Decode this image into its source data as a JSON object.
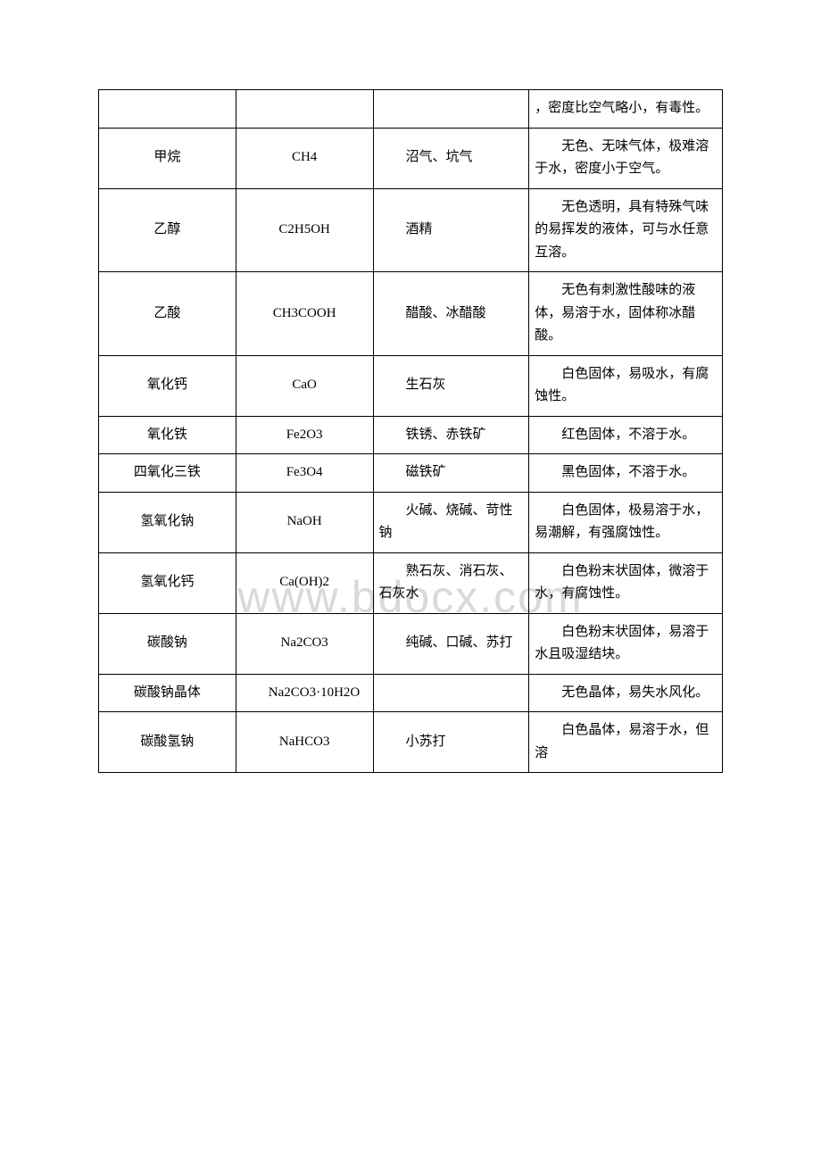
{
  "watermark": "www.bdocx.com",
  "table": {
    "columns": [
      {
        "key": "name",
        "align": "center",
        "width": "22%"
      },
      {
        "key": "formula",
        "align": "center",
        "width": "22%"
      },
      {
        "key": "alias",
        "align": "left",
        "text_indent": "2em",
        "width": "25%"
      },
      {
        "key": "property",
        "align": "left",
        "text_indent": "2em",
        "width": "31%"
      }
    ],
    "border_color": "#000000",
    "font_size": 15,
    "line_height": 1.7,
    "background_color": "#ffffff",
    "rows": [
      {
        "name": "",
        "formula": "",
        "alias": "",
        "property": "，密度比空气略小，有毒性。"
      },
      {
        "name": "甲烷",
        "formula": "CH4",
        "alias": "沼气、坑气",
        "property": "无色、无味气体，极难溶于水，密度小于空气。"
      },
      {
        "name": "乙醇",
        "formula": "C2H5OH",
        "alias": "酒精",
        "property": "无色透明，具有特殊气味的易挥发的液体，可与水任意互溶。"
      },
      {
        "name": "乙酸",
        "formula": "CH3COOH",
        "alias": "醋酸、冰醋酸",
        "property": "无色有刺激性酸味的液体，易溶于水，固体称冰醋酸。"
      },
      {
        "name": "氧化钙",
        "formula": "CaO",
        "alias": "生石灰",
        "property": "白色固体，易吸水，有腐蚀性。"
      },
      {
        "name": "氧化铁",
        "formula": "Fe2O3",
        "alias": "铁锈、赤铁矿",
        "property": "红色固体，不溶于水。"
      },
      {
        "name": "四氧化三铁",
        "formula": "Fe3O4",
        "alias": "磁铁矿",
        "property": "黑色固体，不溶于水。"
      },
      {
        "name": "氢氧化钠",
        "formula": "NaOH",
        "alias": "火碱、烧碱、苛性钠",
        "property": "白色固体，极易溶于水，易潮解，有强腐蚀性。"
      },
      {
        "name": "氢氧化钙",
        "formula": "Ca(OH)2",
        "alias": "熟石灰、消石灰、石灰水",
        "property": "白色粉末状固体，微溶于水，有腐蚀性。"
      },
      {
        "name": "碳酸钠",
        "formula": "Na2CO3",
        "alias": "纯碱、口碱、苏打",
        "property": "白色粉末状固体，易溶于水且吸湿结块。"
      },
      {
        "name": "碳酸钠晶体",
        "formula": "Na2CO3·10H2O",
        "alias": "",
        "property": "无色晶体，易失水风化。"
      },
      {
        "name": "碳酸氢钠",
        "formula": "NaHCO3",
        "alias": "小苏打",
        "property": "白色晶体，易溶于水，但溶"
      }
    ]
  }
}
